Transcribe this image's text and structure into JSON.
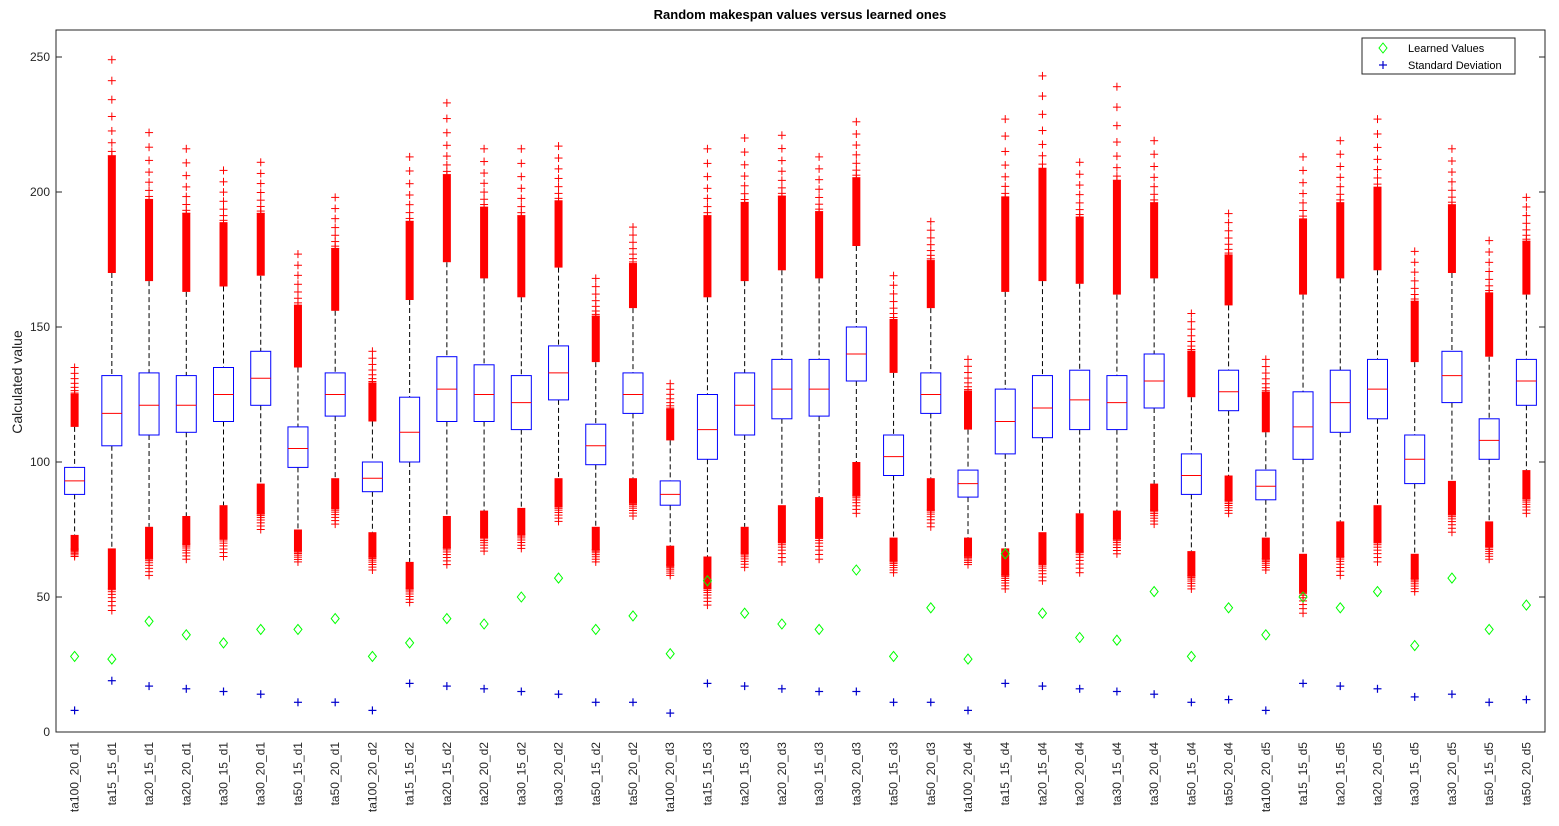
{
  "chart_data": {
    "type": "boxplot",
    "title": "Random makespan values versus learned ones",
    "xlabel": "",
    "ylabel": "Calculated value",
    "ylim": [
      0,
      260
    ],
    "yticks": [
      0,
      50,
      100,
      150,
      200,
      250
    ],
    "grid": false,
    "legend_position": "top-right",
    "legend": [
      {
        "label": "Learned Values",
        "marker": "diamond",
        "color": "#00ff00"
      },
      {
        "label": "Standard Deviation",
        "marker": "plus",
        "color": "#0000cc"
      }
    ],
    "colors": {
      "box": "#0000ff",
      "median": "#ff0000",
      "outlier": "#ff0000",
      "whisker": "#000000"
    },
    "categories": [
      "ta100_20_d1",
      "ta15_15_d1",
      "ta20_15_d1",
      "ta20_20_d1",
      "ta30_15_d1",
      "ta30_20_d1",
      "ta50_15_d1",
      "ta50_20_d1",
      "ta100_20_d2",
      "ta15_15_d2",
      "ta20_15_d2",
      "ta20_20_d2",
      "ta30_15_d2",
      "ta30_20_d2",
      "ta50_15_d2",
      "ta50_20_d2",
      "ta100_20_d3",
      "ta15_15_d3",
      "ta20_15_d3",
      "ta20_20_d3",
      "ta30_15_d3",
      "ta30_20_d3",
      "ta50_15_d3",
      "ta50_20_d3",
      "ta100_20_d4",
      "ta15_15_d4",
      "ta20_15_d4",
      "ta20_20_d4",
      "ta30_15_d4",
      "ta30_20_d4",
      "ta50_15_d4",
      "ta50_20_d4",
      "ta100_20_d5",
      "ta15_15_d5",
      "ta20_15_d5",
      "ta20_20_d5",
      "ta30_15_d5",
      "ta30_20_d5",
      "ta50_15_d5",
      "ta50_20_d5"
    ],
    "boxes": [
      {
        "q1": 88,
        "median": 93,
        "q3": 98,
        "whisker_low": 73,
        "whisker_high": 113,
        "outlier_low": [
          65,
          73
        ],
        "outlier_high": [
          113,
          135
        ]
      },
      {
        "q1": 106,
        "median": 118,
        "q3": 132,
        "whisker_low": 68,
        "whisker_high": 170,
        "outlier_low": [
          45,
          68
        ],
        "outlier_high": [
          170,
          249
        ]
      },
      {
        "q1": 110,
        "median": 121,
        "q3": 133,
        "whisker_low": 76,
        "whisker_high": 167,
        "outlier_low": [
          58,
          76
        ],
        "outlier_high": [
          167,
          222
        ]
      },
      {
        "q1": 111,
        "median": 121,
        "q3": 132,
        "whisker_low": 80,
        "whisker_high": 163,
        "outlier_low": [
          64,
          80
        ],
        "outlier_high": [
          163,
          216
        ]
      },
      {
        "q1": 115,
        "median": 125,
        "q3": 135,
        "whisker_low": 84,
        "whisker_high": 165,
        "outlier_low": [
          65,
          84
        ],
        "outlier_high": [
          165,
          208
        ]
      },
      {
        "q1": 121,
        "median": 131,
        "q3": 141,
        "whisker_low": 92,
        "whisker_high": 169,
        "outlier_low": [
          75,
          92
        ],
        "outlier_high": [
          169,
          211
        ]
      },
      {
        "q1": 98,
        "median": 105,
        "q3": 113,
        "whisker_low": 75,
        "whisker_high": 135,
        "outlier_low": [
          63,
          75
        ],
        "outlier_high": [
          135,
          177
        ]
      },
      {
        "q1": 117,
        "median": 125,
        "q3": 133,
        "whisker_low": 94,
        "whisker_high": 156,
        "outlier_low": [
          77,
          94
        ],
        "outlier_high": [
          156,
          198
        ]
      },
      {
        "q1": 89,
        "median": 94,
        "q3": 100,
        "whisker_low": 74,
        "whisker_high": 115,
        "outlier_low": [
          60,
          74
        ],
        "outlier_high": [
          115,
          141
        ]
      },
      {
        "q1": 100,
        "median": 111,
        "q3": 124,
        "whisker_low": 63,
        "whisker_high": 160,
        "outlier_low": [
          48,
          63
        ],
        "outlier_high": [
          160,
          213
        ]
      },
      {
        "q1": 115,
        "median": 127,
        "q3": 139,
        "whisker_low": 80,
        "whisker_high": 174,
        "outlier_low": [
          62,
          80
        ],
        "outlier_high": [
          174,
          233
        ]
      },
      {
        "q1": 115,
        "median": 125,
        "q3": 136,
        "whisker_low": 82,
        "whisker_high": 168,
        "outlier_low": [
          67,
          82
        ],
        "outlier_high": [
          168,
          216
        ]
      },
      {
        "q1": 112,
        "median": 122,
        "q3": 132,
        "whisker_low": 83,
        "whisker_high": 161,
        "outlier_low": [
          68,
          83
        ],
        "outlier_high": [
          161,
          216
        ]
      },
      {
        "q1": 123,
        "median": 133,
        "q3": 143,
        "whisker_low": 94,
        "whisker_high": 172,
        "outlier_low": [
          78,
          94
        ],
        "outlier_high": [
          172,
          217
        ]
      },
      {
        "q1": 99,
        "median": 106,
        "q3": 114,
        "whisker_low": 76,
        "whisker_high": 137,
        "outlier_low": [
          63,
          76
        ],
        "outlier_high": [
          137,
          168
        ]
      },
      {
        "q1": 118,
        "median": 125,
        "q3": 133,
        "whisker_low": 94,
        "whisker_high": 157,
        "outlier_low": [
          80,
          94
        ],
        "outlier_high": [
          157,
          187
        ]
      },
      {
        "q1": 84,
        "median": 88,
        "q3": 93,
        "whisker_low": 69,
        "whisker_high": 108,
        "outlier_low": [
          58,
          69
        ],
        "outlier_high": [
          108,
          129
        ]
      },
      {
        "q1": 101,
        "median": 112,
        "q3": 125,
        "whisker_low": 65,
        "whisker_high": 161,
        "outlier_low": [
          47,
          65
        ],
        "outlier_high": [
          161,
          216
        ]
      },
      {
        "q1": 110,
        "median": 121,
        "q3": 133,
        "whisker_low": 76,
        "whisker_high": 167,
        "outlier_low": [
          61,
          76
        ],
        "outlier_high": [
          167,
          220
        ]
      },
      {
        "q1": 116,
        "median": 127,
        "q3": 138,
        "whisker_low": 84,
        "whisker_high": 171,
        "outlier_low": [
          63,
          84
        ],
        "outlier_high": [
          171,
          221
        ]
      },
      {
        "q1": 117,
        "median": 127,
        "q3": 138,
        "whisker_low": 87,
        "whisker_high": 168,
        "outlier_low": [
          64,
          87
        ],
        "outlier_high": [
          168,
          213
        ]
      },
      {
        "q1": 130,
        "median": 140,
        "q3": 150,
        "whisker_low": 100,
        "whisker_high": 180,
        "outlier_low": [
          81,
          100
        ],
        "outlier_high": [
          180,
          226
        ]
      },
      {
        "q1": 95,
        "median": 102,
        "q3": 110,
        "whisker_low": 72,
        "whisker_high": 133,
        "outlier_low": [
          59,
          72
        ],
        "outlier_high": [
          133,
          169
        ]
      },
      {
        "q1": 118,
        "median": 125,
        "q3": 133,
        "whisker_low": 94,
        "whisker_high": 157,
        "outlier_low": [
          76,
          94
        ],
        "outlier_high": [
          157,
          189
        ]
      },
      {
        "q1": 87,
        "median": 92,
        "q3": 97,
        "whisker_low": 72,
        "whisker_high": 112,
        "outlier_low": [
          62,
          72
        ],
        "outlier_high": [
          112,
          138
        ]
      },
      {
        "q1": 103,
        "median": 115,
        "q3": 127,
        "whisker_low": 68,
        "whisker_high": 163,
        "outlier_low": [
          53,
          68
        ],
        "outlier_high": [
          163,
          227
        ]
      },
      {
        "q1": 109,
        "median": 120,
        "q3": 132,
        "whisker_low": 74,
        "whisker_high": 167,
        "outlier_low": [
          56,
          74
        ],
        "outlier_high": [
          167,
          243
        ]
      },
      {
        "q1": 112,
        "median": 123,
        "q3": 134,
        "whisker_low": 81,
        "whisker_high": 166,
        "outlier_low": [
          59,
          81
        ],
        "outlier_high": [
          166,
          211
        ]
      },
      {
        "q1": 112,
        "median": 122,
        "q3": 132,
        "whisker_low": 82,
        "whisker_high": 162,
        "outlier_low": [
          66,
          82
        ],
        "outlier_high": [
          162,
          239
        ]
      },
      {
        "q1": 120,
        "median": 130,
        "q3": 140,
        "whisker_low": 92,
        "whisker_high": 168,
        "outlier_low": [
          77,
          92
        ],
        "outlier_high": [
          168,
          219
        ]
      },
      {
        "q1": 88,
        "median": 95,
        "q3": 103,
        "whisker_low": 67,
        "whisker_high": 124,
        "outlier_low": [
          53,
          67
        ],
        "outlier_high": [
          124,
          155
        ]
      },
      {
        "q1": 119,
        "median": 126,
        "q3": 134,
        "whisker_low": 95,
        "whisker_high": 158,
        "outlier_low": [
          81,
          95
        ],
        "outlier_high": [
          158,
          192
        ]
      },
      {
        "q1": 86,
        "median": 91,
        "q3": 97,
        "whisker_low": 72,
        "whisker_high": 111,
        "outlier_low": [
          60,
          72
        ],
        "outlier_high": [
          111,
          138
        ]
      },
      {
        "q1": 101,
        "median": 113,
        "q3": 126,
        "whisker_low": 66,
        "whisker_high": 162,
        "outlier_low": [
          44,
          66
        ],
        "outlier_high": [
          162,
          213
        ]
      },
      {
        "q1": 111,
        "median": 122,
        "q3": 134,
        "whisker_low": 78,
        "whisker_high": 168,
        "outlier_low": [
          58,
          78
        ],
        "outlier_high": [
          168,
          219
        ]
      },
      {
        "q1": 116,
        "median": 127,
        "q3": 138,
        "whisker_low": 84,
        "whisker_high": 171,
        "outlier_low": [
          63,
          84
        ],
        "outlier_high": [
          171,
          227
        ]
      },
      {
        "q1": 92,
        "median": 101,
        "q3": 110,
        "whisker_low": 66,
        "whisker_high": 137,
        "outlier_low": [
          52,
          66
        ],
        "outlier_high": [
          137,
          178
        ]
      },
      {
        "q1": 122,
        "median": 132,
        "q3": 141,
        "whisker_low": 93,
        "whisker_high": 170,
        "outlier_low": [
          74,
          93
        ],
        "outlier_high": [
          170,
          216
        ]
      },
      {
        "q1": 101,
        "median": 108,
        "q3": 116,
        "whisker_low": 78,
        "whisker_high": 139,
        "outlier_low": [
          64,
          78
        ],
        "outlier_high": [
          139,
          182
        ]
      },
      {
        "q1": 121,
        "median": 130,
        "q3": 138,
        "whisker_low": 97,
        "whisker_high": 162,
        "outlier_low": [
          81,
          97
        ],
        "outlier_high": [
          162,
          198
        ]
      }
    ],
    "series": [
      {
        "name": "Learned Values",
        "values": [
          28,
          27,
          41,
          36,
          33,
          38,
          38,
          42,
          28,
          33,
          42,
          40,
          50,
          57,
          38,
          43,
          29,
          56,
          44,
          40,
          38,
          60,
          28,
          46,
          27,
          66,
          44,
          35,
          34,
          52,
          28,
          46,
          36,
          50,
          46,
          52,
          32,
          57,
          38,
          47
        ]
      },
      {
        "name": "Standard Deviation",
        "values": [
          8,
          19,
          17,
          16,
          15,
          14,
          11,
          11,
          8,
          18,
          17,
          16,
          15,
          14,
          11,
          11,
          7,
          18,
          17,
          16,
          15,
          15,
          11,
          11,
          8,
          18,
          17,
          16,
          15,
          14,
          11,
          12,
          8,
          18,
          17,
          16,
          13,
          14,
          11,
          12
        ]
      }
    ]
  }
}
